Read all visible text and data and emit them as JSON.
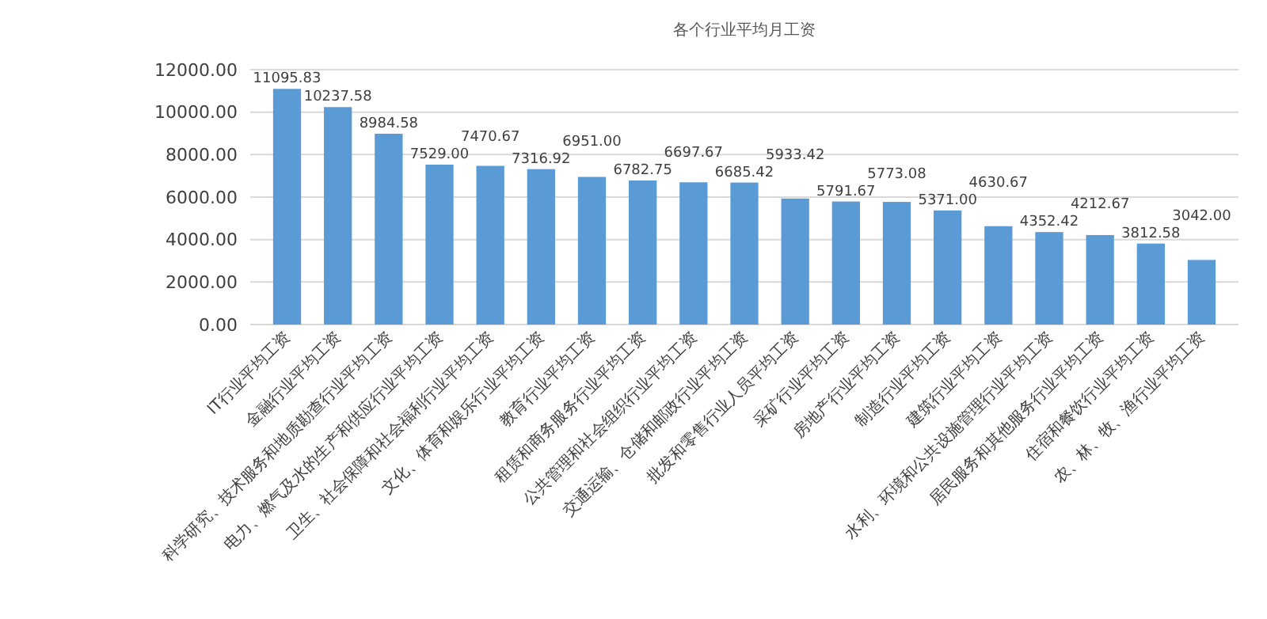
{
  "chart_data": {
    "type": "bar",
    "title": "各个行业平均月工资",
    "categories": [
      "IT行业平均工资",
      "金融行业平均工资",
      "科学研究、技术服务和地质勘查行业平均工资",
      "电力、燃气及水的生产和供应行业平均工资",
      "卫生、社会保障和社会福利行业平均工资",
      "文化、体育和娱乐行业平均工资",
      "教育行业平均工资",
      "租赁和商务服务行业平均工资",
      "公共管理和社会组织行业平均工资",
      "交通运输、仓储和邮政行业平均工资",
      "批发和零售行业人员平均工资",
      "采矿行业平均工资",
      "房地产行业平均工资",
      "制造行业平均工资",
      "建筑行业平均工资",
      "水利、环境和公共设施管理行业平均工资",
      "居民服务和其他服务行业平均工资",
      "住宿和餐饮行业平均工资",
      "农、林、牧、渔行业平均工资"
    ],
    "values": [
      11095.83,
      10237.58,
      8984.58,
      7529.0,
      7470.67,
      7316.92,
      6951.0,
      6782.75,
      6697.67,
      6685.42,
      5933.42,
      5791.67,
      5773.08,
      5371.0,
      4630.67,
      4352.42,
      4212.67,
      3812.58,
      3042.0
    ],
    "value_labels": [
      "11095.83",
      "10237.58",
      "8984.58",
      "7529.00",
      "7470.67",
      "7316.92",
      "6951.00",
      "6782.75",
      "6697.67",
      "6685.42",
      "5933.42",
      "5791.67",
      "5773.08",
      "5371.00",
      "4630.67",
      "4352.42",
      "4212.67",
      "3812.58",
      "3042.00"
    ],
    "color": "#5b9bd5",
    "ylim": [
      0,
      12000
    ],
    "yticks": [
      {
        "value": 0,
        "label": "0.00"
      },
      {
        "value": 2000,
        "label": "2000.00"
      },
      {
        "value": 4000,
        "label": "4000.00"
      },
      {
        "value": 6000,
        "label": "6000.00"
      },
      {
        "value": 8000,
        "label": "8000.00"
      },
      {
        "value": 10000,
        "label": "10000.00"
      },
      {
        "value": 12000,
        "label": "12000.00"
      }
    ],
    "grid": true
  }
}
